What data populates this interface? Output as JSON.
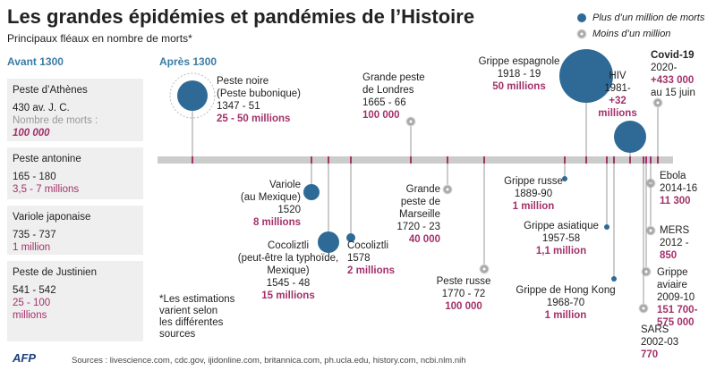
{
  "header": {
    "title": "Les grandes épidémies et pandémies de l’Histoire",
    "subtitle": "Principaux fléaux en nombre de morts*"
  },
  "legend": {
    "large": "Plus d’un million de morts",
    "small": "Moins d’un million"
  },
  "before": {
    "heading": "Avant 1300",
    "items": [
      {
        "name": "Peste d’Athènes",
        "dates": "430 av. J. C.",
        "caption": "Nombre de morts :",
        "deaths": [
          "100 000"
        ]
      },
      {
        "name": "Peste antonine",
        "dates": "165 - 180",
        "deaths": [
          "3,5 - 7 millions"
        ]
      },
      {
        "name": "Variole japonaise",
        "dates": "735 - 737",
        "deaths": [
          "1 million"
        ]
      },
      {
        "name": "Peste de Justinien",
        "dates": "541 - 542",
        "deaths": [
          "25 - 100",
          "millions"
        ]
      }
    ]
  },
  "after": {
    "heading": "Après 1300",
    "events": [
      {
        "lines": [
          "Peste noire",
          "(Peste bubonique)",
          "1347 - 51"
        ],
        "deaths": [
          "25 - 50 millions"
        ]
      },
      {
        "lines": [
          "Grande peste",
          "de Londres",
          "1665 - 66"
        ],
        "deaths": [
          "100 000"
        ]
      },
      {
        "lines": [
          "Grippe espagnole",
          "1918 - 19"
        ],
        "deaths": [
          "50 millions"
        ]
      },
      {
        "lines": [
          "HIV",
          "1981-"
        ],
        "deaths": [
          "+32",
          "millions"
        ]
      },
      {
        "lines": [
          "Covid-19",
          "2020-"
        ],
        "deaths": [
          "+433 000"
        ],
        "after": [
          "au 15 juin"
        ]
      },
      {
        "lines": [
          "Variole",
          "(au Mexique)",
          "1520"
        ],
        "deaths": [
          "8 millions"
        ]
      },
      {
        "lines": [
          "Cocoliztli",
          "(peut-être la typhoïde,",
          "Mexique)",
          "1545 - 48"
        ],
        "deaths": [
          "15 millions"
        ]
      },
      {
        "lines": [
          "Cocoliztli",
          "1578"
        ],
        "deaths": [
          "2 millions"
        ]
      },
      {
        "lines": [
          "Grande",
          "peste de",
          "Marseille",
          "1720 - 23"
        ],
        "deaths": [
          "40 000"
        ]
      },
      {
        "lines": [
          "Peste russe",
          "1770 - 72"
        ],
        "deaths": [
          "100 000"
        ]
      },
      {
        "lines": [
          "Grippe russe",
          "1889-90"
        ],
        "deaths": [
          "1 million"
        ]
      },
      {
        "lines": [
          "Grippe asiatique",
          "1957-58"
        ],
        "deaths": [
          "1,1 million"
        ]
      },
      {
        "lines": [
          "Grippe de Hong Kong",
          "1968-70"
        ],
        "deaths": [
          "1 million"
        ]
      },
      {
        "lines": [
          "Ebola",
          "2014-16"
        ],
        "deaths": [
          "11 300"
        ]
      },
      {
        "lines": [
          "MERS",
          "2012 -"
        ],
        "deaths": [
          "850"
        ]
      },
      {
        "lines": [
          "Grippe",
          "aviaire",
          "2009-10"
        ],
        "deaths": [
          "151 700-",
          "575 000"
        ]
      },
      {
        "lines": [
          "SARS",
          "2002-03"
        ],
        "deaths": [
          "770"
        ]
      }
    ]
  },
  "footnote": [
    "*Les estimations",
    "varient selon",
    "les différentes",
    "sources"
  ],
  "sources": "Sources : livescience.com, cdc.gov, ijidonline.com, britannica.com, ph.ucla.edu, history.com, ncbi.nlm.nih",
  "logo": "AFP"
}
